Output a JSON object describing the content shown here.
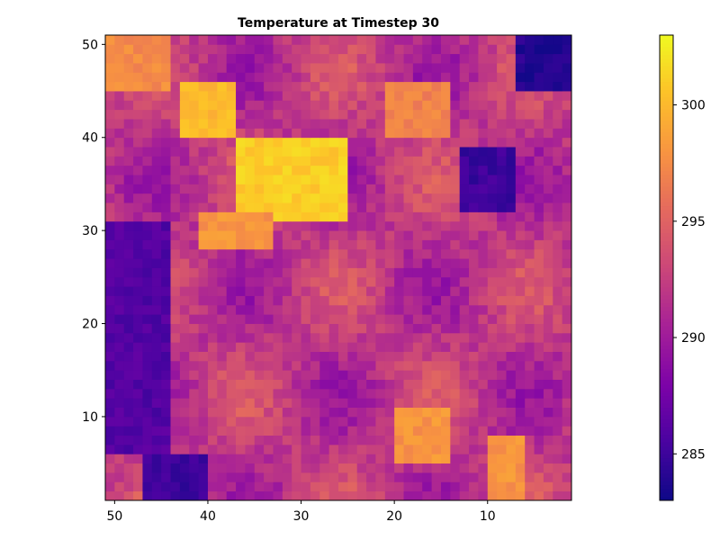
{
  "chart_data": {
    "type": "heatmap",
    "title": "Temperature at Timestep 30",
    "xlabel": "",
    "ylabel": "",
    "x_axis_reversed": true,
    "xlim": [
      51,
      1
    ],
    "ylim": [
      1,
      51
    ],
    "x_ticks": [
      50,
      40,
      30,
      20,
      10
    ],
    "y_ticks": [
      10,
      20,
      30,
      40,
      50
    ],
    "grid": false,
    "colormap": "plasma",
    "colorbar": {
      "range": [
        283,
        303
      ],
      "ticks": [
        285,
        290,
        295,
        300
      ]
    },
    "grid_size": [
      50,
      50
    ],
    "regions": [
      {
        "label": "upper-left warm patch",
        "x_range": [
          44,
          51
        ],
        "y_range": [
          45,
          51
        ],
        "value": 297.5
      },
      {
        "label": "hot band",
        "x_range": [
          25,
          36
        ],
        "y_range": [
          31,
          39
        ],
        "value": 301
      },
      {
        "label": "hot patch",
        "x_range": [
          37,
          42
        ],
        "y_range": [
          40,
          45
        ],
        "value": 300
      },
      {
        "label": "warm strip",
        "x_range": [
          33,
          40
        ],
        "y_range": [
          28,
          31
        ],
        "value": 298
      },
      {
        "label": "warm patch",
        "x_range": [
          14,
          20
        ],
        "y_range": [
          40,
          45
        ],
        "value": 297
      },
      {
        "label": "warm patch lower",
        "x_range": [
          14,
          19
        ],
        "y_range": [
          5,
          10
        ],
        "value": 298
      },
      {
        "label": "warm column",
        "x_range": [
          6,
          9
        ],
        "y_range": [
          1,
          7
        ],
        "value": 298
      },
      {
        "label": "cold corner",
        "x_range": [
          1,
          6
        ],
        "y_range": [
          45,
          51
        ],
        "value": 284
      },
      {
        "label": "cold patch",
        "x_range": [
          7,
          12
        ],
        "y_range": [
          32,
          38
        ],
        "value": 285
      },
      {
        "label": "cold left band",
        "x_range": [
          44,
          51
        ],
        "y_range": [
          6,
          30
        ],
        "value": 286
      },
      {
        "label": "cold bottom patch",
        "x_range": [
          40,
          46
        ],
        "y_range": [
          1,
          5
        ],
        "value": 285
      }
    ]
  }
}
